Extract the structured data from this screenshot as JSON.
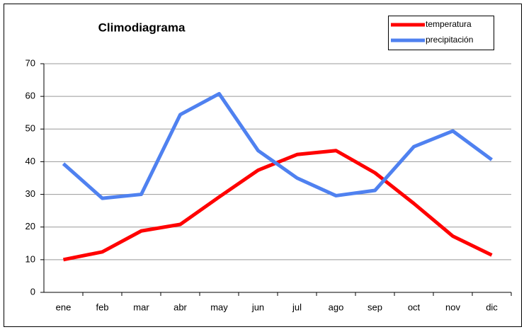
{
  "chart_data": {
    "type": "line",
    "title": "Climodiagrama",
    "categories": [
      "ene",
      "feb",
      "mar",
      "abr",
      "may",
      "jun",
      "jul",
      "ago",
      "sep",
      "oct",
      "nov",
      "dic"
    ],
    "series": [
      {
        "name": "temperatura",
        "color": "#ff0000",
        "values": [
          10,
          12.4,
          18.8,
          20.8,
          29.2,
          37.4,
          42.2,
          43.4,
          36.6,
          27.2,
          17.2,
          11.4
        ]
      },
      {
        "name": "precipitación",
        "color": "#4f81f0",
        "values": [
          39.4,
          28.8,
          30,
          54.4,
          60.8,
          43.4,
          35,
          29.6,
          31.2,
          44.6,
          49.4,
          40.6
        ]
      }
    ],
    "ylim": [
      0,
      70
    ],
    "yticks": [
      0,
      10,
      20,
      30,
      40,
      50,
      60,
      70
    ],
    "grid": true,
    "legend": "top-right"
  }
}
